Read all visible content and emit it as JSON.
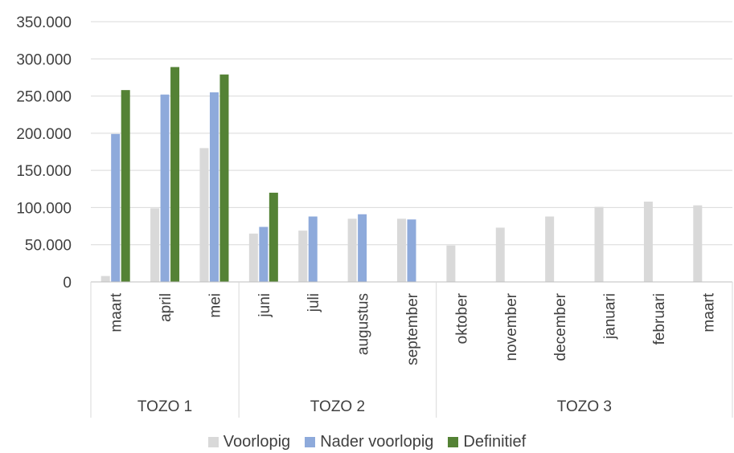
{
  "chart_data": {
    "type": "bar",
    "categories": [
      "maart",
      "april",
      "mei",
      "juni",
      "juli",
      "augustus",
      "september",
      "oktober",
      "november",
      "december",
      "januari",
      "februari",
      "maart"
    ],
    "groups": [
      {
        "label": "TOZO 1",
        "start": 0,
        "count": 3
      },
      {
        "label": "TOZO 2",
        "start": 3,
        "count": 4
      },
      {
        "label": "TOZO 3",
        "start": 7,
        "count": 6
      }
    ],
    "series": [
      {
        "name": "Voorlopig",
        "color": "#d9d9d9",
        "values": [
          8000,
          99000,
          180000,
          65000,
          69000,
          85000,
          85000,
          49000,
          73000,
          88000,
          101000,
          108000,
          103000
        ]
      },
      {
        "name": "Nader voorlopig",
        "color": "#8eaadb",
        "values": [
          199000,
          252000,
          255000,
          74000,
          88000,
          91000,
          84000,
          null,
          null,
          null,
          null,
          null,
          null
        ]
      },
      {
        "name": "Definitief",
        "color": "#548235",
        "values": [
          258000,
          289000,
          279000,
          120000,
          null,
          null,
          null,
          null,
          null,
          null,
          null,
          null,
          null
        ]
      }
    ],
    "yticks": [
      "0",
      "50.000",
      "100.000",
      "150.000",
      "200.000",
      "250.000",
      "300.000",
      "350.000"
    ],
    "ylim": [
      0,
      350000
    ],
    "grid": true,
    "legend_position": "bottom",
    "title": "",
    "xlabel": "",
    "ylabel": ""
  }
}
